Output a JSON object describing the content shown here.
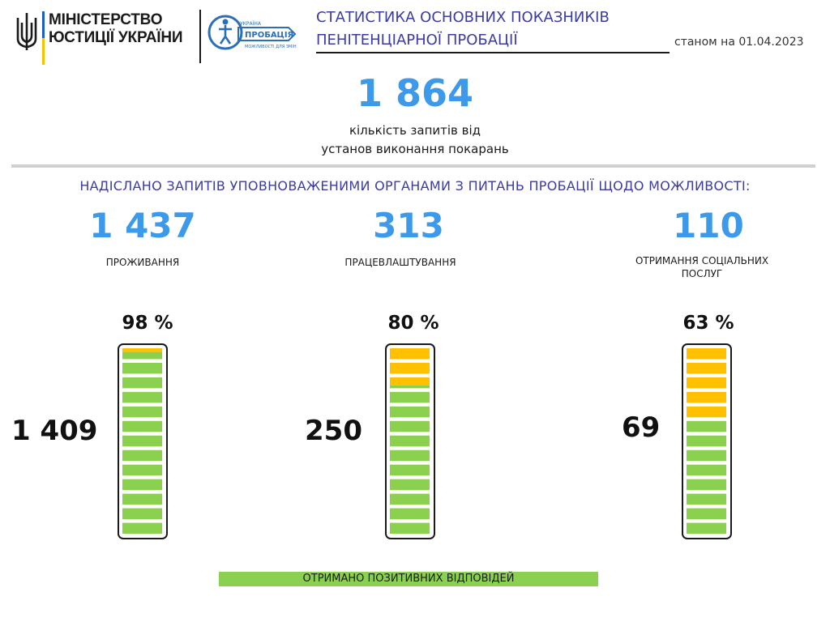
{
  "header": {
    "ministry_line1": "МІНІСТЕРСТВО",
    "ministry_line2": "ЮСТИЦІЇ УКРАЇНИ",
    "logo_text_small": "УКРАЇНА",
    "logo_text_main": "ПРОБАЦІЯ",
    "logo_text_sub": "МОЖЛИВОСТІ ДЛЯ ЗМІН",
    "title_line1": "СТАТИСТИКА ОСНОВНИХ ПОКАЗНИКІВ",
    "title_line2": "ПЕНІТЕНЦІАРНОЇ ПРОБАЦІЇ",
    "as_of": "станом на 01.04.2023"
  },
  "total": {
    "value": "1 864",
    "caption_line1": "кількість запитів від",
    "caption_line2": "установ виконання покарань"
  },
  "section_title": "НАДІСЛАНО ЗАПИТІВ УПОВНОВАЖЕНИМИ ОРГАНАМИ З ПИТАНЬ ПРОБАЦІЇ  ЩОДО МОЖЛИВОСТІ:",
  "legend_label": "ОТРИМАНО  ПОЗИТИВНИХ ВІДПОВІДЕЙ",
  "colors": {
    "title_blue": "#3b3ba0",
    "number_blue": "#3d99ea",
    "positive_green": "#8bd04e",
    "remaining_yellow": "#ffc000",
    "flag_blue": "#1f5fbf",
    "flag_yellow": "#f5c400"
  },
  "chart_data": {
    "type": "bar",
    "categories": [
      "ПРОЖИВАННЯ",
      "ПРАЦЕВЛАШТУВАННЯ",
      "ОТРИМАННЯ СОЦІАЛЬНИХ ПОСЛУГ"
    ],
    "category_lines": [
      [
        "ПРОЖИВАННЯ"
      ],
      [
        "ПРАЦЕВЛАШТУВАННЯ"
      ],
      [
        "ОТРИМАННЯ  СОЦІАЛЬНИХ",
        "ПОСЛУГ"
      ]
    ],
    "requests": [
      1437,
      313,
      110
    ],
    "requests_labels": [
      "1 437",
      "313",
      "110"
    ],
    "positive": [
      1409,
      250,
      69
    ],
    "positive_labels": [
      "1 409",
      "250",
      "69"
    ],
    "percent": [
      98,
      80,
      63
    ],
    "percent_labels": [
      "98 %",
      "80 %",
      "63 %"
    ]
  }
}
